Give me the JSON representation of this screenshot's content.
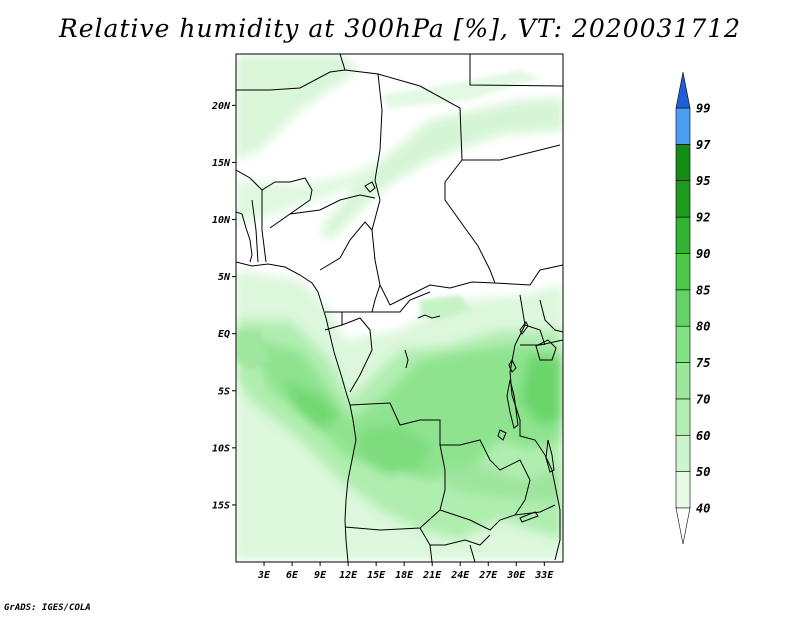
{
  "title": "Relative humidity at 300hPa [%], VT: 2020031712",
  "credit": "GrADS: IGES/COLA",
  "map": {
    "lon_range": [
      0,
      35
    ],
    "lat_range": [
      -20,
      24.5
    ],
    "lat_ticks": [
      {
        "value": 20,
        "label": "20N"
      },
      {
        "value": 15,
        "label": "15N"
      },
      {
        "value": 10,
        "label": "10N"
      },
      {
        "value": 5,
        "label": "5N"
      },
      {
        "value": 0,
        "label": "EQ"
      },
      {
        "value": -5,
        "label": "5S"
      },
      {
        "value": -10,
        "label": "10S"
      },
      {
        "value": -15,
        "label": "15S"
      }
    ],
    "lon_ticks": [
      {
        "value": 3,
        "label": "3E"
      },
      {
        "value": 6,
        "label": "6E"
      },
      {
        "value": 9,
        "label": "9E"
      },
      {
        "value": 12,
        "label": "12E"
      },
      {
        "value": 15,
        "label": "15E"
      },
      {
        "value": 18,
        "label": "18E"
      },
      {
        "value": 21,
        "label": "21E"
      },
      {
        "value": 24,
        "label": "24E"
      },
      {
        "value": 27,
        "label": "27E"
      },
      {
        "value": 30,
        "label": "30E"
      },
      {
        "value": 33,
        "label": "33E"
      }
    ]
  },
  "colorbar": {
    "levels": [
      {
        "value": "40",
        "color": "#e6fae6"
      },
      {
        "value": "50",
        "color": "#cdf5cd"
      },
      {
        "value": "60",
        "color": "#b4f0b4"
      },
      {
        "value": "70",
        "color": "#9be69b"
      },
      {
        "value": "75",
        "color": "#82e182"
      },
      {
        "value": "80",
        "color": "#64d264"
      },
      {
        "value": "85",
        "color": "#4bc84b"
      },
      {
        "value": "90",
        "color": "#32b432"
      },
      {
        "value": "92",
        "color": "#1e9b1e"
      },
      {
        "value": "95",
        "color": "#148c14"
      },
      {
        "value": "97",
        "color": "#4a9ff0"
      },
      {
        "value": "99",
        "color": "#2f7ee6"
      }
    ],
    "top_color": "#1f5fd6",
    "bottom_color": "#ffffff"
  }
}
